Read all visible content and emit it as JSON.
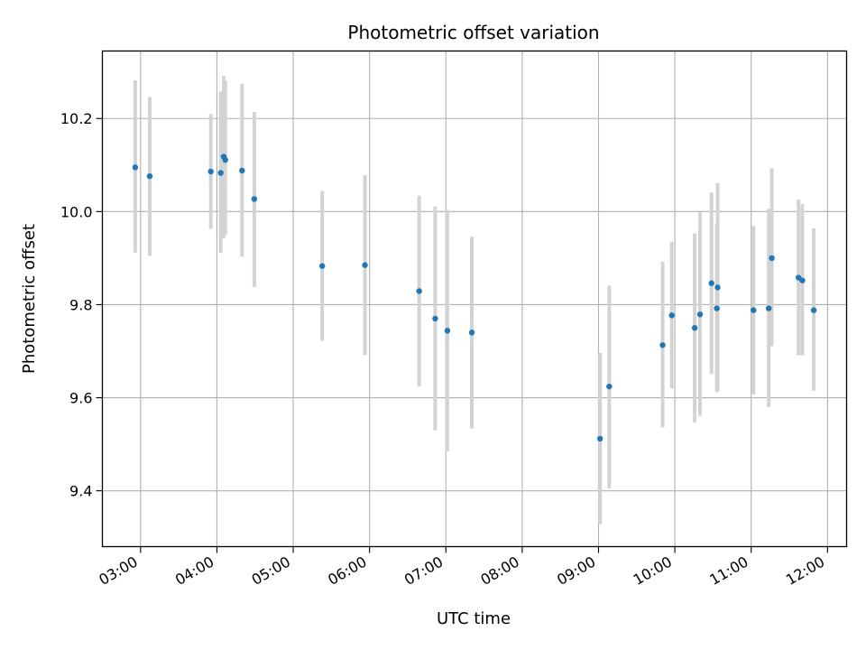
{
  "chart_data": {
    "type": "scatter",
    "title": "Photometric offset variation",
    "xlabel": "UTC time",
    "ylabel": "Photometric offset",
    "x_unit": "hours UTC",
    "xlim": [
      2.5,
      12.25
    ],
    "ylim": [
      9.28,
      10.345
    ],
    "x_ticks": [
      3,
      4,
      5,
      6,
      7,
      8,
      9,
      10,
      11,
      12
    ],
    "x_tick_labels": [
      "03:00",
      "04:00",
      "05:00",
      "06:00",
      "07:00",
      "08:00",
      "09:00",
      "10:00",
      "11:00",
      "12:00"
    ],
    "y_ticks": [
      9.4,
      9.6,
      9.8,
      10.0,
      10.2
    ],
    "y_tick_labels": [
      "9.4",
      "9.6",
      "9.8",
      "10.0",
      "10.2"
    ],
    "grid": true,
    "marker_color": "#1f77b4",
    "errorbar_color": "#d3d3d3",
    "points": [
      {
        "x": 2.93,
        "y": 10.095,
        "lo": 9.912,
        "hi": 10.282
      },
      {
        "x": 3.12,
        "y": 10.076,
        "lo": 9.905,
        "hi": 10.246
      },
      {
        "x": 3.92,
        "y": 10.086,
        "lo": 9.963,
        "hi": 10.21
      },
      {
        "x": 4.05,
        "y": 10.083,
        "lo": 9.911,
        "hi": 10.258
      },
      {
        "x": 4.09,
        "y": 10.118,
        "lo": 9.943,
        "hi": 10.291
      },
      {
        "x": 4.11,
        "y": 10.111,
        "lo": 9.95,
        "hi": 10.282
      },
      {
        "x": 4.33,
        "y": 10.088,
        "lo": 9.903,
        "hi": 10.275
      },
      {
        "x": 4.49,
        "y": 10.027,
        "lo": 9.838,
        "hi": 10.214
      },
      {
        "x": 5.38,
        "y": 9.883,
        "lo": 9.722,
        "hi": 10.044
      },
      {
        "x": 5.94,
        "y": 9.885,
        "lo": 9.692,
        "hi": 10.078
      },
      {
        "x": 6.65,
        "y": 9.829,
        "lo": 9.624,
        "hi": 10.034
      },
      {
        "x": 6.86,
        "y": 9.77,
        "lo": 9.53,
        "hi": 10.011
      },
      {
        "x": 7.02,
        "y": 9.744,
        "lo": 9.485,
        "hi": 10.003
      },
      {
        "x": 7.34,
        "y": 9.74,
        "lo": 9.534,
        "hi": 9.946
      },
      {
        "x": 9.02,
        "y": 9.512,
        "lo": 9.328,
        "hi": 9.696
      },
      {
        "x": 9.14,
        "y": 9.624,
        "lo": 9.405,
        "hi": 9.841
      },
      {
        "x": 9.84,
        "y": 9.713,
        "lo": 9.536,
        "hi": 9.892
      },
      {
        "x": 9.96,
        "y": 9.777,
        "lo": 9.62,
        "hi": 9.935
      },
      {
        "x": 10.26,
        "y": 9.75,
        "lo": 9.547,
        "hi": 9.953
      },
      {
        "x": 10.33,
        "y": 9.779,
        "lo": 9.561,
        "hi": 9.999
      },
      {
        "x": 10.48,
        "y": 9.846,
        "lo": 9.651,
        "hi": 10.041
      },
      {
        "x": 10.55,
        "y": 9.792,
        "lo": 9.612,
        "hi": 9.973
      },
      {
        "x": 10.56,
        "y": 9.837,
        "lo": 9.614,
        "hi": 10.061
      },
      {
        "x": 11.03,
        "y": 9.788,
        "lo": 9.607,
        "hi": 9.969
      },
      {
        "x": 11.23,
        "y": 9.792,
        "lo": 9.58,
        "hi": 10.006
      },
      {
        "x": 11.27,
        "y": 9.9,
        "lo": 9.711,
        "hi": 10.093
      },
      {
        "x": 11.62,
        "y": 9.858,
        "lo": 9.691,
        "hi": 10.026
      },
      {
        "x": 11.67,
        "y": 9.852,
        "lo": 9.691,
        "hi": 10.016
      },
      {
        "x": 11.82,
        "y": 9.788,
        "lo": 9.615,
        "hi": 9.964
      }
    ]
  }
}
